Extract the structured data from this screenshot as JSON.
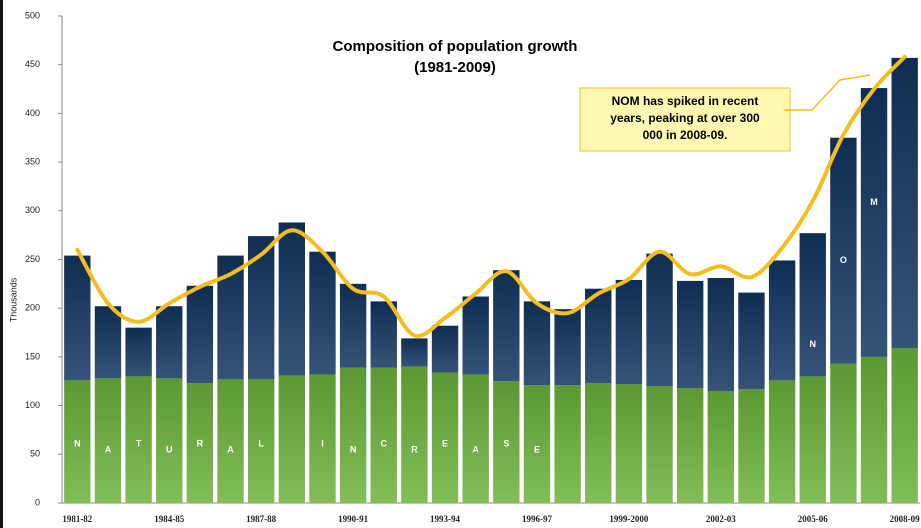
{
  "chart_data": {
    "type": "bar",
    "stacked": true,
    "title": [
      "Composition of population growth",
      "(1981-2009)"
    ],
    "y_label": "Thousands",
    "annotation": [
      "NOM has spiked in recent",
      "years, peaking at over 300",
      "000 in 2008-09."
    ],
    "categories": [
      "1981-82",
      null,
      null,
      "1984-85",
      null,
      null,
      "1987-88",
      null,
      null,
      "1990-91",
      null,
      null,
      "1993-94",
      null,
      null,
      "1996-97",
      null,
      null,
      "1999-2000",
      null,
      null,
      "2002-03",
      null,
      null,
      "2005-06",
      null,
      null,
      "2008-09"
    ],
    "series": [
      {
        "color": "#6cb33a",
        "bar_letters": [
          "N",
          "A",
          "T",
          "U",
          "R",
          "A",
          "L",
          null,
          "I",
          "N",
          "C",
          "R",
          "E",
          "A",
          "S",
          "E",
          null,
          null,
          null,
          null,
          null,
          null,
          null,
          null,
          null,
          null,
          null,
          null
        ],
        "values": [
          126,
          128,
          130,
          128,
          123,
          127,
          127,
          131,
          132,
          139,
          139,
          140,
          134,
          132,
          125,
          121,
          121,
          123,
          122,
          120,
          118,
          115,
          117,
          126,
          130,
          143,
          150,
          159
        ]
      },
      {
        "color": "#123560",
        "bar_letters": [
          null,
          null,
          null,
          null,
          null,
          null,
          null,
          null,
          null,
          null,
          null,
          null,
          null,
          null,
          null,
          null,
          null,
          null,
          null,
          null,
          null,
          null,
          null,
          null,
          "N",
          "O",
          "M",
          null
        ],
        "values": [
          128,
          74,
          50,
          74,
          100,
          127,
          147,
          157,
          126,
          86,
          68,
          29,
          48,
          80,
          114,
          86,
          78,
          97,
          107,
          136,
          110,
          116,
          99,
          123,
          147,
          232,
          276,
          298
        ]
      }
    ],
    "trend": {
      "color": "#f5bd1f",
      "values": [
        260,
        205,
        186,
        205,
        222,
        235,
        255,
        280,
        258,
        220,
        212,
        172,
        190,
        215,
        238,
        205,
        195,
        215,
        230,
        258,
        235,
        243,
        232,
        262,
        310,
        378,
        425,
        458
      ]
    },
    "ylim": [
      0,
      500
    ],
    "yticks": [
      0,
      50,
      100,
      150,
      200,
      250,
      300,
      350,
      400,
      450,
      500
    ]
  }
}
